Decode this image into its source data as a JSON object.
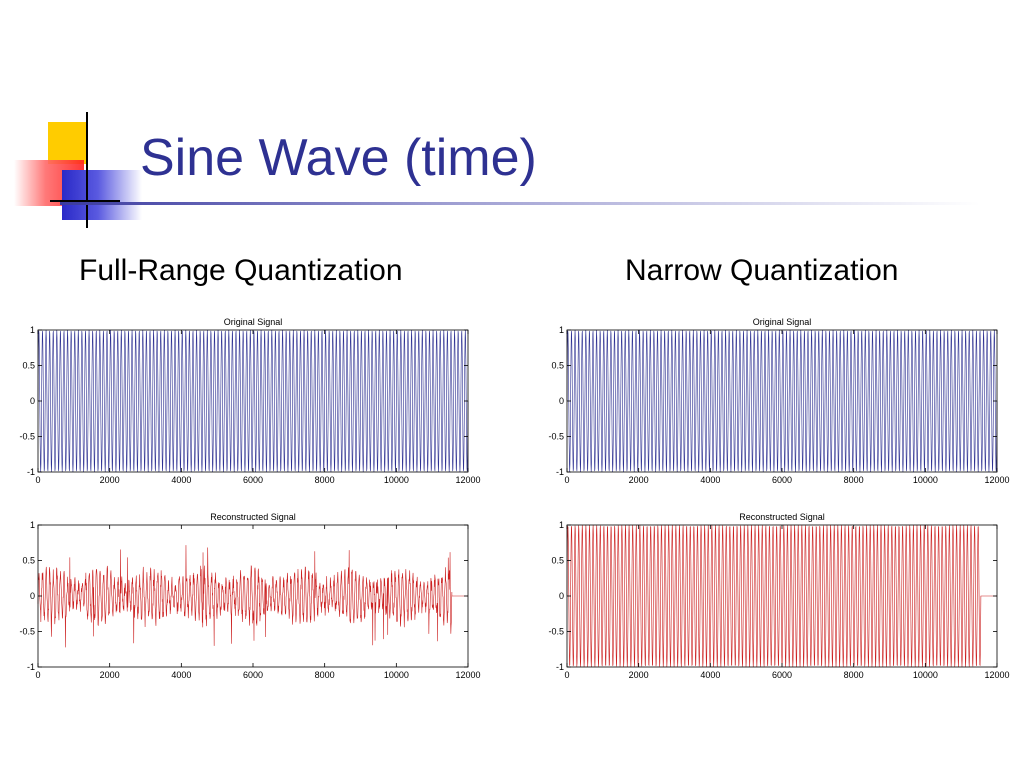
{
  "slide": {
    "title": "Sine Wave (time)",
    "left_heading": "Full-Range Quantization",
    "right_heading": "Narrow Quantization",
    "colors": {
      "title": "#2e3192",
      "original_signal": "#2e3192",
      "reconstructed_signal": "#cc2020",
      "logo_yellow": "#ffcc00",
      "logo_red": "#ff2a2a",
      "logo_blue": "#3333cc"
    }
  },
  "chart_data": [
    {
      "type": "line",
      "title": "Original Signal",
      "xlim": [
        0,
        12000
      ],
      "ylim": [
        -1,
        1
      ],
      "x_ticks": [
        "0",
        "2000",
        "4000",
        "6000",
        "8000",
        "10000",
        "12000"
      ],
      "y_ticks": [
        "1",
        "0.5",
        "0",
        "-0.5",
        "-1"
      ],
      "signal": {
        "kind": "sine",
        "amplitude": 1,
        "samples_to": 12000,
        "approx_cycles": 120
      },
      "grid": false
    },
    {
      "type": "line",
      "title": "Reconstructed Signal",
      "xlim": [
        0,
        12000
      ],
      "ylim": [
        -1,
        1
      ],
      "x_ticks": [
        "0",
        "2000",
        "4000",
        "6000",
        "8000",
        "10000",
        "12000"
      ],
      "y_ticks": [
        "1",
        "0.5",
        "0",
        "-0.5",
        "-1"
      ],
      "signal": {
        "kind": "noisy-sine",
        "amplitude": 0.35,
        "peak_spikes": 0.7,
        "samples_to": 11550,
        "approx_cycles": 115
      },
      "grid": false
    },
    {
      "type": "line",
      "title": "Original Signal",
      "xlim": [
        0,
        12000
      ],
      "ylim": [
        -1,
        1
      ],
      "x_ticks": [
        "0",
        "2000",
        "4000",
        "6000",
        "8000",
        "10000",
        "12000"
      ],
      "y_ticks": [
        "1",
        "0.5",
        "0",
        "-0.5",
        "-1"
      ],
      "signal": {
        "kind": "sine",
        "amplitude": 1,
        "samples_to": 12000,
        "approx_cycles": 120
      },
      "grid": false
    },
    {
      "type": "line",
      "title": "Reconstructed Signal",
      "xlim": [
        0,
        12000
      ],
      "ylim": [
        -1,
        1
      ],
      "x_ticks": [
        "0",
        "2000",
        "4000",
        "6000",
        "8000",
        "10000",
        "12000"
      ],
      "y_ticks": [
        "1",
        "0.5",
        "0",
        "-0.5",
        "-1"
      ],
      "signal": {
        "kind": "sine",
        "amplitude": 1,
        "samples_to": 11550,
        "approx_cycles": 115
      },
      "grid": false
    }
  ]
}
